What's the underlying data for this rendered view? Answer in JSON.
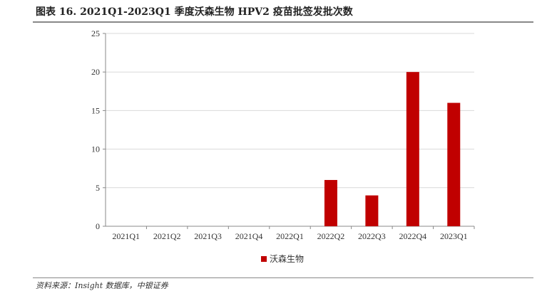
{
  "title": "图表 16. 2021Q1-2023Q1 季度沃森生物 HPV2 疫苗批签发批次数",
  "footer": "资料来源：Insight 数据库，中银证券",
  "chart_data": {
    "type": "bar",
    "categories": [
      "2021Q1",
      "2021Q2",
      "2021Q3",
      "2021Q4",
      "2022Q1",
      "2022Q2",
      "2022Q3",
      "2022Q4",
      "2023Q1"
    ],
    "series": [
      {
        "name": "沃森生物",
        "values": [
          0,
          0,
          0,
          0,
          0,
          6,
          4,
          20,
          16
        ],
        "color": "#c00000"
      }
    ],
    "ylim": [
      0,
      25
    ],
    "yticks": [
      0,
      5,
      10,
      15,
      20,
      25
    ],
    "grid": true,
    "legend": "bottom"
  }
}
